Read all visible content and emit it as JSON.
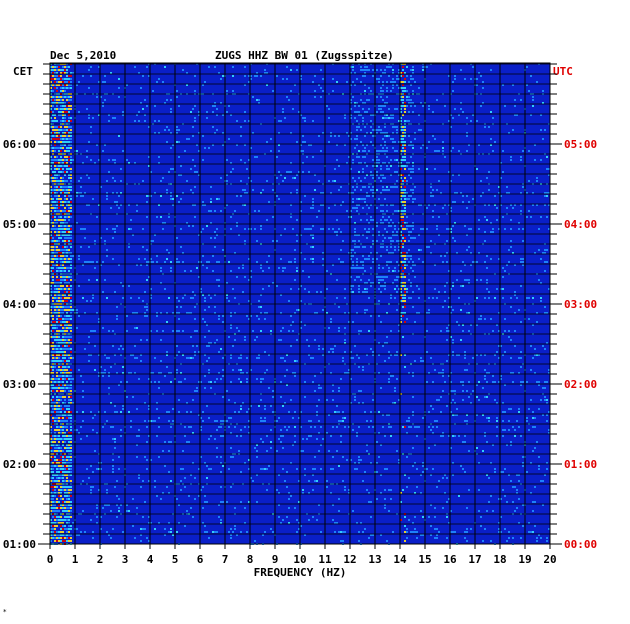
{
  "header": {
    "date": "Dec 5,2010",
    "station": "ZUGS HHZ BW 01 (Zugsspitze)"
  },
  "chart_data": {
    "type": "heatmap",
    "title": "ZUGS HHZ BW 01 (Zugsspitze)",
    "date": "Dec 5,2010",
    "xlabel": "FREQUENCY (HZ)",
    "xlim": [
      0,
      20
    ],
    "x_ticks": [
      "0",
      "1",
      "2",
      "3",
      "4",
      "5",
      "6",
      "7",
      "8",
      "9",
      "10",
      "11",
      "12",
      "13",
      "14",
      "15",
      "16",
      "17",
      "18",
      "19",
      "20"
    ],
    "left_axis_label": "CET",
    "right_axis_label": "UTC",
    "left_ticks": [
      "01:00",
      "02:00",
      "03:00",
      "04:00",
      "05:00",
      "06:00"
    ],
    "right_ticks": [
      "00:00",
      "01:00",
      "02:00",
      "03:00",
      "04:00",
      "05:00"
    ],
    "colors": {
      "background_low": "#0a1fc8",
      "mid": "#1f8cff",
      "high": "#35e0ff",
      "peak_yellow": "#ffe020",
      "peak_red": "#e00000",
      "grid": "#000000",
      "utc_text": "#e00000"
    },
    "features": {
      "low_frequency_band_hz": [
        0,
        0.8
      ],
      "persistent_line_hz": 14.1,
      "activity_band_hz": [
        12,
        14.5
      ]
    }
  },
  "footnote": "*"
}
